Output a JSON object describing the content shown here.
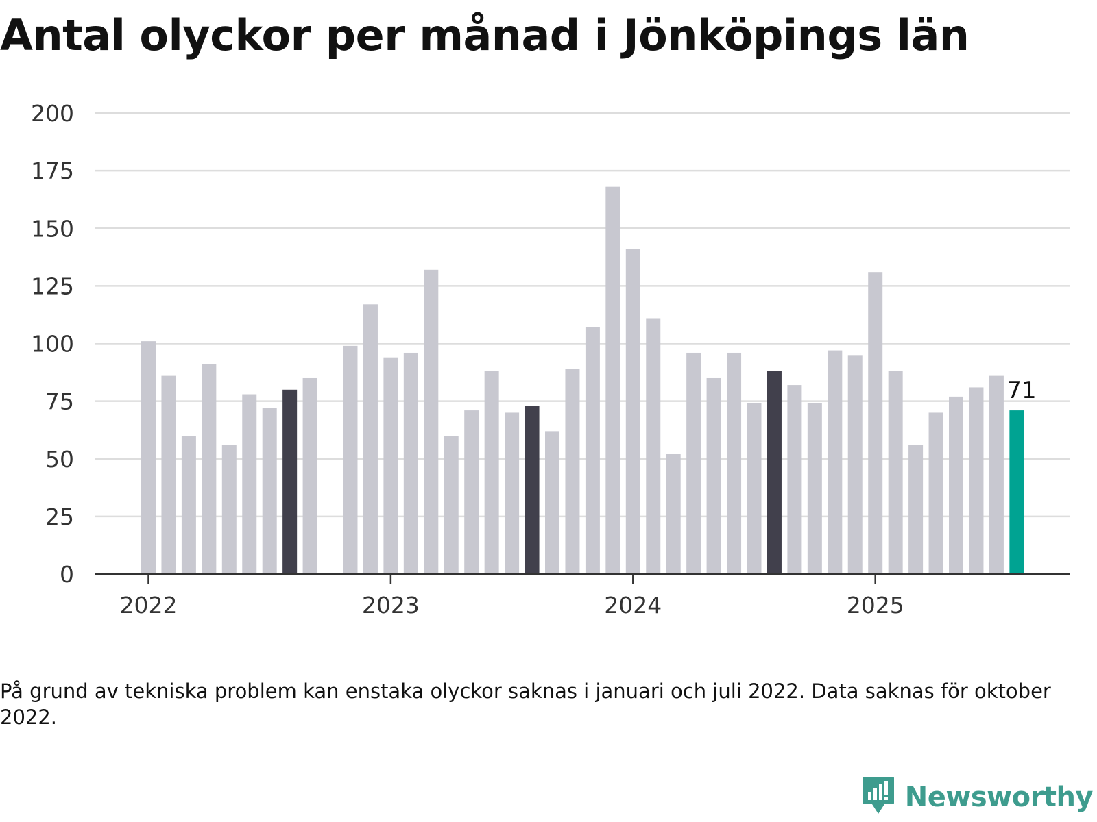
{
  "title": "Antal olyckor per månad i Jönköpings län",
  "footnote": "På grund av tekniska problem kan enstaka olyckor saknas i januari och juli 2022. Data saknas för oktober 2022.",
  "brand": {
    "name": "Newsworthy",
    "icon": "newsworthy-logo-icon",
    "color": "#3e9c8e"
  },
  "colors": {
    "bar_default": "#c8c8d0",
    "bar_highlight": "#41404c",
    "bar_latest": "#00a392",
    "grid": "#dddddd",
    "axis": "#333333"
  },
  "chart_data": {
    "type": "bar",
    "title": "Antal olyckor per månad i Jönköpings län",
    "xlabel": "",
    "ylabel": "",
    "ylim": [
      0,
      200
    ],
    "yticks": [
      0,
      25,
      50,
      75,
      100,
      125,
      150,
      175,
      200
    ],
    "xticks": [
      "2022",
      "2023",
      "2024",
      "2025"
    ],
    "grid": true,
    "categories": [
      "2022-01",
      "2022-02",
      "2022-03",
      "2022-04",
      "2022-05",
      "2022-06",
      "2022-07",
      "2022-08",
      "2022-09",
      "2022-10",
      "2022-11",
      "2022-12",
      "2023-01",
      "2023-02",
      "2023-03",
      "2023-04",
      "2023-05",
      "2023-06",
      "2023-07",
      "2023-08",
      "2023-09",
      "2023-10",
      "2023-11",
      "2023-12",
      "2024-01",
      "2024-02",
      "2024-03",
      "2024-04",
      "2024-05",
      "2024-06",
      "2024-07",
      "2024-08",
      "2024-09",
      "2024-10",
      "2024-11",
      "2024-12",
      "2025-01",
      "2025-02",
      "2025-03",
      "2025-04",
      "2025-05",
      "2025-06",
      "2025-07",
      "2025-08"
    ],
    "values": [
      101,
      86,
      60,
      91,
      56,
      78,
      72,
      80,
      85,
      null,
      99,
      117,
      94,
      96,
      132,
      60,
      71,
      88,
      70,
      73,
      62,
      89,
      107,
      168,
      141,
      111,
      52,
      96,
      85,
      96,
      74,
      88,
      82,
      74,
      97,
      95,
      131,
      88,
      56,
      70,
      77,
      81,
      86,
      71
    ],
    "highlight": [
      "2022-08",
      "2023-08",
      "2024-08"
    ],
    "latest": "2025-08",
    "latest_label": "71"
  }
}
